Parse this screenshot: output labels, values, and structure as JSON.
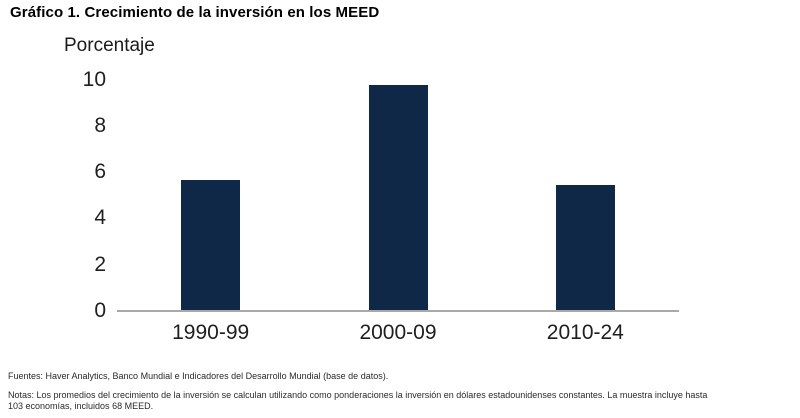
{
  "chart_data": {
    "type": "bar",
    "title": "Gráfico 1. Crecimiento de la inversión en los MEED",
    "unit_label": "Porcentaje",
    "categories": [
      "1990-99",
      "2000-09",
      "2010-24"
    ],
    "values": [
      5.6,
      9.7,
      5.4
    ],
    "xlabel": "",
    "ylabel": "Porcentaje",
    "ylim": [
      0,
      10
    ],
    "yticks": [
      0,
      2,
      4,
      6,
      8,
      10
    ],
    "grid": false,
    "legend_position": "none",
    "bar_color": "#0f2847",
    "axis_line_color": "#a9a9a9"
  },
  "footer": {
    "sources": "Fuentes: Haver Analytics, Banco Mundial e Indicadores del Desarrollo Mundial (base de datos).",
    "notes_lines": [
      "Notas: Los promedios del crecimiento de la inversión se calculan utilizando como ponderaciones la inversión en dólares estadounidenses constantes. La muestra incluye hasta",
      "103 economías, incluidos 68 MEED."
    ]
  }
}
